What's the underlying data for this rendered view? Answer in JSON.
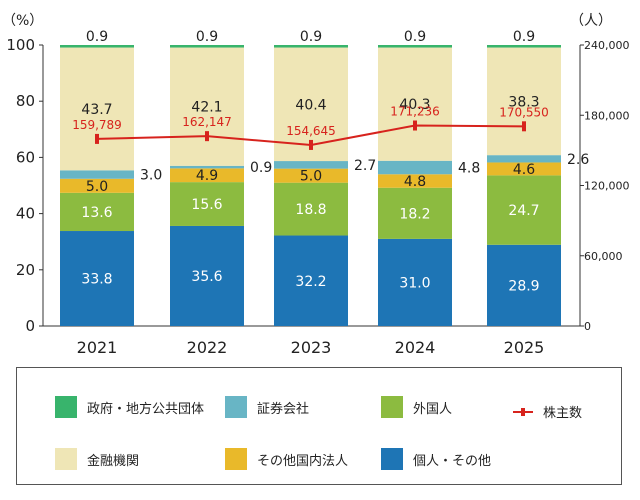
{
  "chart_data": {
    "type": "bar",
    "stacked": true,
    "categories": [
      "2021",
      "2022",
      "2023",
      "2024",
      "2025"
    ],
    "ylabel_left": "（%）",
    "ylabel_right": "（人）",
    "ylim_left": [
      0,
      100
    ],
    "ylim_right": [
      0,
      240000
    ],
    "yticks_left": [
      "0",
      "20",
      "40",
      "60",
      "80",
      "100"
    ],
    "yticks_right": [
      "0",
      "60,000",
      "120,000",
      "180,000",
      "240,000"
    ],
    "series": [
      {
        "name": "個人・その他",
        "color": "#1e75b5",
        "label_color": "#ffffff",
        "values": [
          33.8,
          35.6,
          32.2,
          31.0,
          28.9
        ],
        "labels": [
          "33.8",
          "35.6",
          "32.2",
          "31.0",
          "28.9"
        ]
      },
      {
        "name": "外国人",
        "color": "#8cbb40",
        "label_color": "#ffffff",
        "values": [
          13.6,
          15.6,
          18.8,
          18.2,
          24.7
        ],
        "labels": [
          "13.6",
          "15.6",
          "18.8",
          "18.2",
          "24.7"
        ]
      },
      {
        "name": "その他国内法人",
        "color": "#e9b92a",
        "label_color": "#222222",
        "values": [
          5.0,
          4.9,
          5.0,
          4.8,
          4.6
        ],
        "labels": [
          "5.0",
          "4.9",
          "5.0",
          "4.8",
          "4.6"
        ]
      },
      {
        "name": "証券会社",
        "color": "#68b5c5",
        "label_color": "#222222",
        "values": [
          3.0,
          0.9,
          2.7,
          4.8,
          2.6
        ],
        "labels": [
          "3.0",
          "0.9",
          "2.7",
          "4.8",
          "2.6"
        ],
        "label_outside": true
      },
      {
        "name": "金融機関",
        "color": "#efe6b6",
        "label_color": "#222222",
        "values": [
          43.7,
          42.1,
          40.4,
          40.3,
          38.3
        ],
        "labels": [
          "43.7",
          "42.1",
          "40.4",
          "40.3",
          "38.3"
        ]
      },
      {
        "name": "政府・地方公共団体",
        "color": "#38b46c",
        "label_color": "#222222",
        "values": [
          0.9,
          0.9,
          0.9,
          0.9,
          0.9
        ],
        "labels": [
          "0.9",
          "0.9",
          "0.9",
          "0.9",
          "0.9"
        ],
        "label_above": true
      }
    ],
    "line": {
      "name": "株主数",
      "color": "#d7231d",
      "axis": "right",
      "values": [
        159789,
        162147,
        154645,
        171236,
        170550
      ],
      "labels": [
        "159,789",
        "162,147",
        "154,645",
        "171,236",
        "170,550"
      ]
    }
  },
  "legend": [
    {
      "label": "政府・地方公共団体",
      "color": "#38b46c",
      "kind": "box"
    },
    {
      "label": "証券会社",
      "color": "#68b5c5",
      "kind": "box"
    },
    {
      "label": "外国人",
      "color": "#8cbb40",
      "kind": "box"
    },
    {
      "label": "株主数",
      "color": "#d7231d",
      "kind": "line"
    },
    {
      "label": "金融機関",
      "color": "#efe6b6",
      "kind": "box"
    },
    {
      "label": "その他国内法人",
      "color": "#e9b92a",
      "kind": "box"
    },
    {
      "label": "個人・その他",
      "color": "#1e75b5",
      "kind": "box"
    }
  ]
}
